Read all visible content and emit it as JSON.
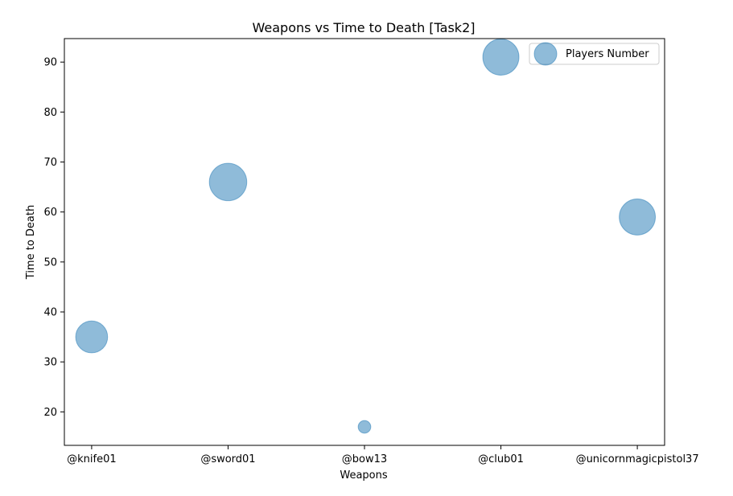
{
  "chart_data": {
    "type": "scatter",
    "title": "Weapons vs Time to Death [Task2]",
    "xlabel": "Weapons",
    "ylabel": "Time to Death",
    "categories": [
      "@knife01",
      "@sword01",
      "@bow13",
      "@club01",
      "@unicornmagicpistol37"
    ],
    "series": [
      {
        "name": "Players Number",
        "values": [
          35,
          66,
          17,
          91,
          59
        ],
        "sizes": [
          640,
          880,
          100,
          820,
          820
        ],
        "color": "#1f77b4",
        "alpha": 0.5
      }
    ],
    "ylim": [
      13.3,
      94.7
    ],
    "yticks": [
      20,
      30,
      40,
      50,
      60,
      70,
      80,
      90
    ],
    "grid": false,
    "legend_position": "upper-right"
  }
}
